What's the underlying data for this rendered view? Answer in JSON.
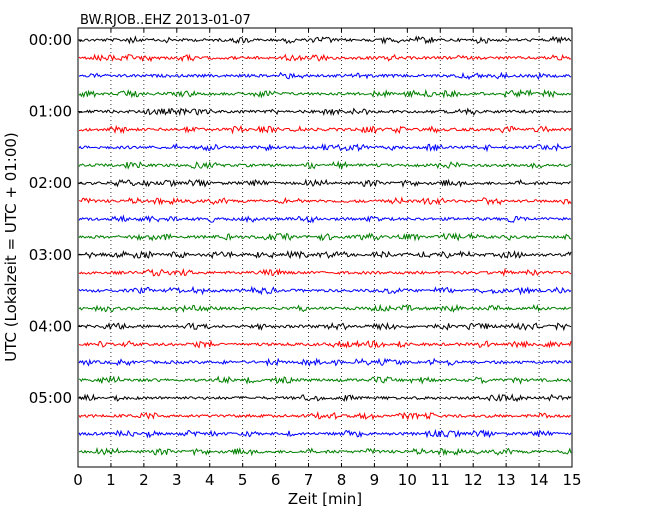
{
  "chart_data": {
    "type": "line",
    "subtype": "dayplot (seismogram helicorder)",
    "title": "BW.RJOB..EHZ 2013-01-07",
    "xlabel": "Zeit  [min]",
    "ylabel": "UTC (Lokalzeit = UTC + 01:00)",
    "xlim": [
      0,
      15
    ],
    "x_ticks": [
      "0",
      "1",
      "2",
      "3",
      "4",
      "5",
      "6",
      "7",
      "8",
      "9",
      "10",
      "11",
      "12",
      "13",
      "14",
      "15"
    ],
    "y_ticks": [
      "00:00",
      "01:00",
      "02:00",
      "03:00",
      "04:00",
      "05:00"
    ],
    "x_grid": "dotted vertical lines at every minute",
    "row_interval_minutes": 15,
    "row_count": 24,
    "row_colors": [
      "#000000",
      "#ff0000",
      "#0000ff",
      "#008000"
    ],
    "row_start_times": [
      "00:00",
      "00:15",
      "00:30",
      "00:45",
      "01:00",
      "01:15",
      "01:30",
      "01:45",
      "02:00",
      "02:15",
      "02:30",
      "02:45",
      "03:00",
      "03:15",
      "03:30",
      "03:45",
      "04:00",
      "04:15",
      "04:30",
      "04:45",
      "05:00",
      "05:15",
      "05:30",
      "05:45"
    ],
    "signal": "low-amplitude background noise on every row"
  }
}
